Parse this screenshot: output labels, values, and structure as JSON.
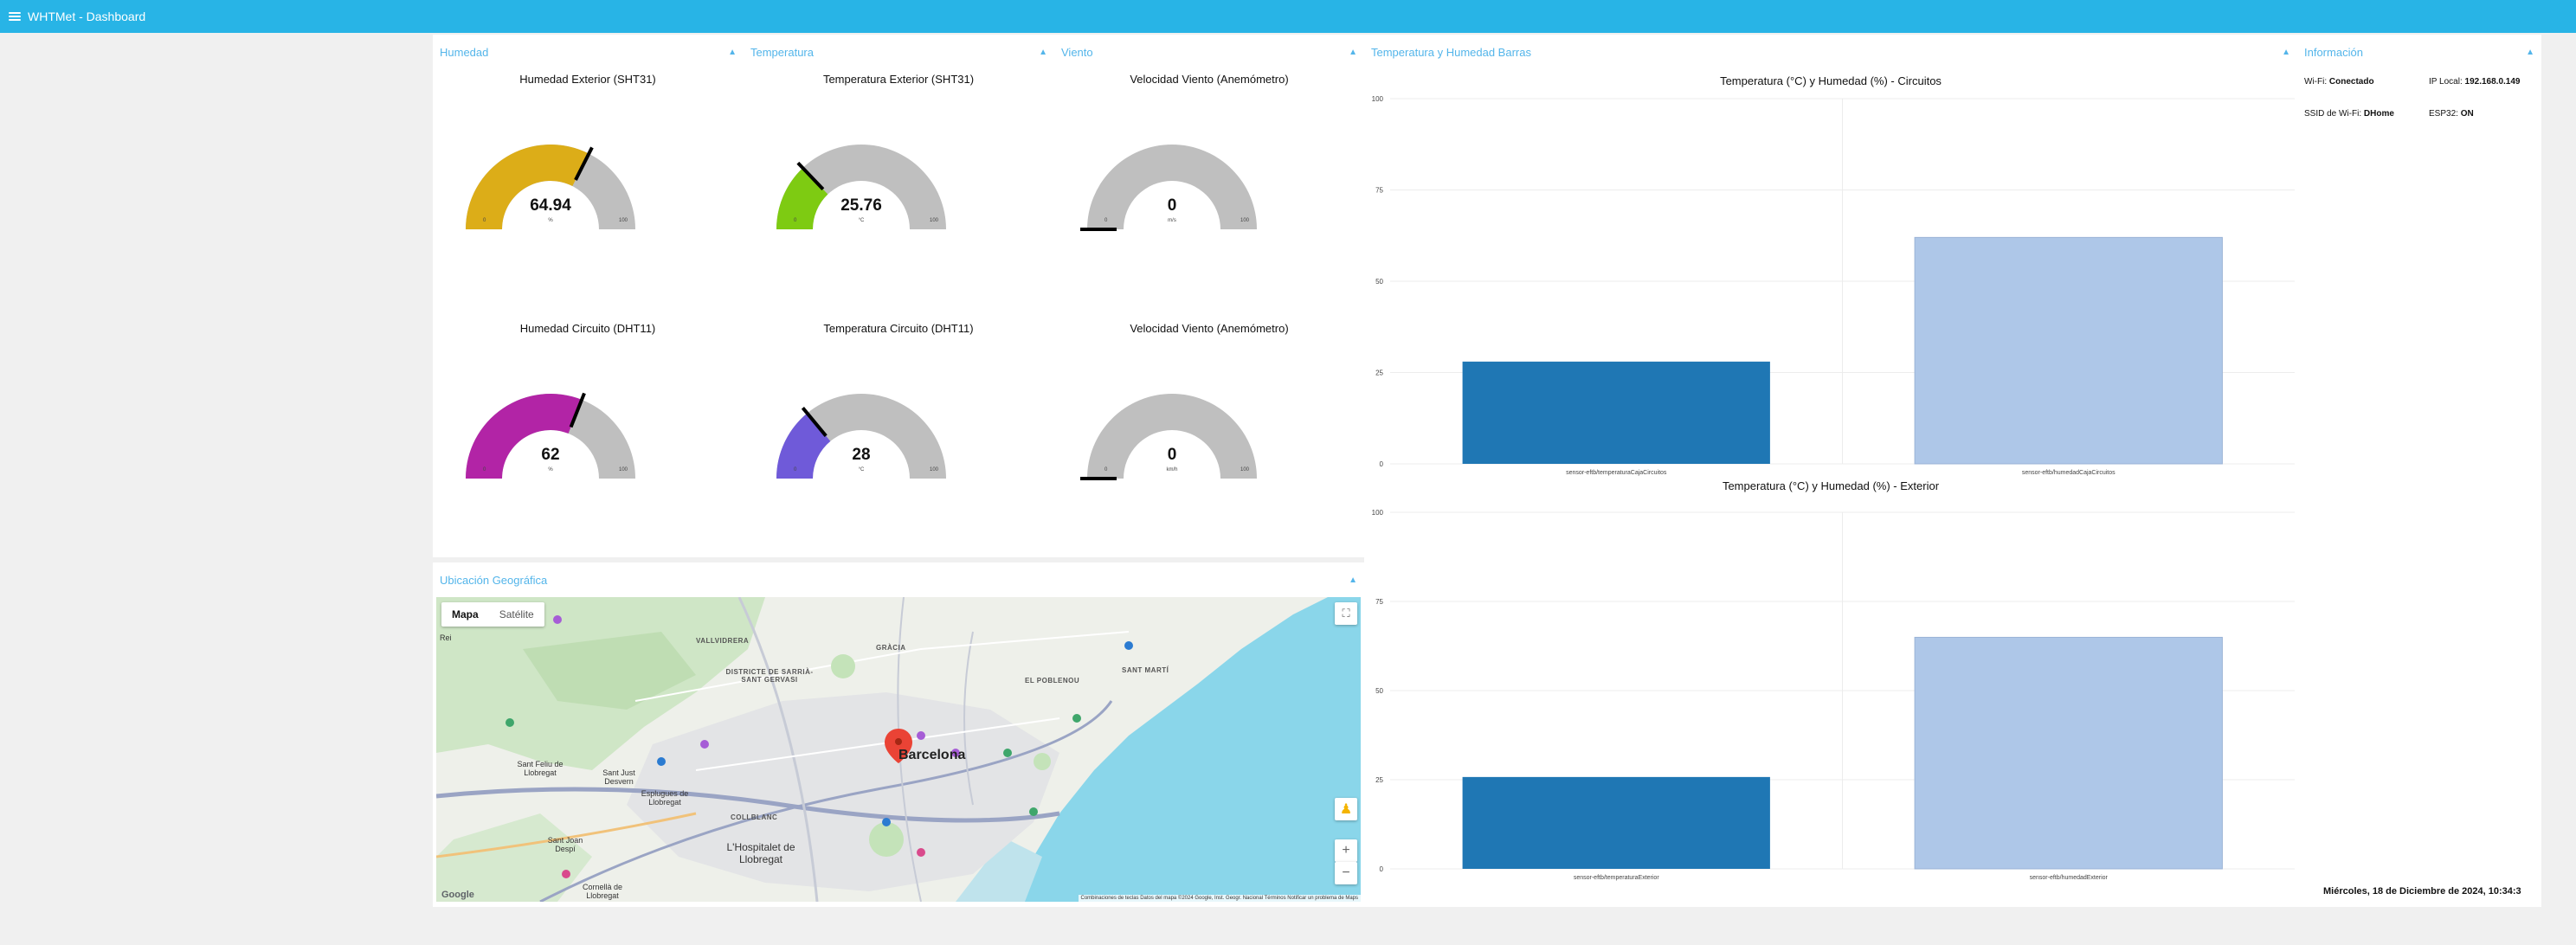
{
  "app": {
    "title": "WHTMet - Dashboard"
  },
  "groups": {
    "humedad": "Humedad",
    "temperatura": "Temperatura",
    "viento": "Viento",
    "barras": "Temperatura y Humedad Barras",
    "info": "Información",
    "ubicacion": "Ubicación Geográfica"
  },
  "gauges": [
    {
      "title": "Humedad Exterior (SHT31)",
      "value": 64.94,
      "display": "64.94",
      "unit": "%",
      "min": "0",
      "max": "100",
      "color": "#dcad18"
    },
    {
      "title": "Temperatura Exterior (SHT31)",
      "value": 25.76,
      "display": "25.76",
      "unit": "°C",
      "min": "0",
      "max": "100",
      "color": "#7ecb12"
    },
    {
      "title": "Velocidad Viento (Anemómetro)",
      "value": 0,
      "display": "0",
      "unit": "m/s",
      "min": "0",
      "max": "100",
      "color": "#bfbfbf"
    },
    {
      "title": "Humedad Circuito (DHT11)",
      "value": 62,
      "display": "62",
      "unit": "%",
      "min": "0",
      "max": "100",
      "color": "#b224a6"
    },
    {
      "title": "Temperatura Circuito (DHT11)",
      "value": 28,
      "display": "28",
      "unit": "°C",
      "min": "0",
      "max": "100",
      "color": "#6f5ad9"
    },
    {
      "title": "Velocidad Viento (Anemómetro)",
      "value": 0,
      "display": "0",
      "unit": "km/h",
      "min": "0",
      "max": "100",
      "color": "#bfbfbf"
    }
  ],
  "chart_data": [
    {
      "type": "bar",
      "title": "Temperatura (°C) y Humedad (%) - Circuitos",
      "categories": [
        "sensor-eftb/temperaturaCajaCircuitos",
        "sensor-eftb/humedadCajaCircuitos"
      ],
      "values": [
        28,
        62
      ],
      "colors": [
        "#1f77b4",
        "#aec7e8"
      ],
      "yticks": [
        "0",
        "25",
        "50",
        "75",
        "100"
      ],
      "ylim": [
        0,
        100
      ]
    },
    {
      "type": "bar",
      "title": "Temperatura (°C) y Humedad (%) - Exterior",
      "categories": [
        "sensor-eftb/temperaturaExterior",
        "sensor-eftb/humedadExterior"
      ],
      "values": [
        25.76,
        64.94
      ],
      "colors": [
        "#1f77b4",
        "#aec7e8"
      ],
      "yticks": [
        "0",
        "25",
        "50",
        "75",
        "100"
      ],
      "ylim": [
        0,
        100
      ]
    }
  ],
  "info": {
    "wifi_label": "Wi-Fi:",
    "wifi_value": "Conectado",
    "ip_label": "IP Local:",
    "ip_value": "192.168.0.149",
    "ssid_label": "SSID de Wi-Fi:",
    "ssid_value": "DHome",
    "esp_label": "ESP32:",
    "esp_value": "ON",
    "datetime": "Miércoles, 18 de Diciembre de 2024, 10:34:3"
  },
  "map": {
    "tab_map": "Mapa",
    "tab_sat": "Satélite",
    "city": "Barcelona",
    "labels": {
      "hospitalet": "L'Hospitalet de Llobregat",
      "sant_feliu": "Sant Feliu de Llobregat",
      "sant_joan": "Sant Joan Despí",
      "sarria": "DISTRICTE DE SARRIÀ-SANT GERVASI",
      "gracia": "GRÀCIA",
      "sant_marti": "SANT MARTÍ",
      "poblenou": "EL POBLENOU",
      "collblanc": "COLLBLANC",
      "vallvidrera": "VALLVIDRERA",
      "cornella": "Cornellà de Llobregat",
      "esplugues": "Esplugues de Llobregat",
      "sant_just": "Sant Just Desvern",
      "rei": "Rei"
    },
    "attribution": "Combinaciones de teclas   Datos del mapa ©2024 Google, Inst. Geogr. Nacional   Términos   Notificar un problema de Maps",
    "google": "Google"
  }
}
